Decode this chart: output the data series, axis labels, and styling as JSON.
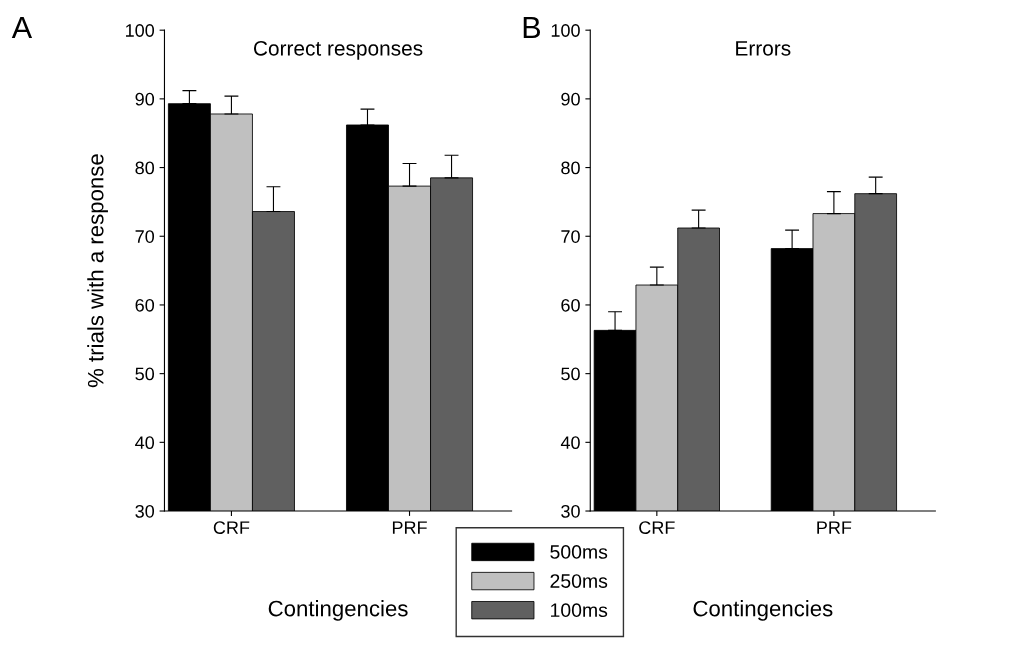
{
  "chart_data": [
    {
      "type": "bar",
      "title": "Correct responses",
      "xlabel": "Contingencies",
      "ylabel": "% trials with a response",
      "annotations": [
        "A"
      ],
      "categories": [
        "CRF",
        "PRF"
      ],
      "ylim": [
        30,
        100
      ],
      "yticks": [
        30,
        40,
        50,
        60,
        70,
        80,
        90,
        100
      ],
      "grid": false,
      "legend": "bottom",
      "series": [
        {
          "name": "500ms",
          "color": "#000000",
          "values": [
            89.3,
            86.2
          ],
          "errors": [
            [
              89.3,
              91.2
            ],
            [
              86.2,
              88.5
            ]
          ]
        },
        {
          "name": "250ms",
          "color": "#c0c0c0",
          "values": [
            87.8,
            77.3
          ],
          "errors": [
            [
              87.8,
              90.4
            ],
            [
              77.3,
              80.6
            ]
          ]
        },
        {
          "name": "100ms",
          "color": "#606060",
          "values": [
            73.6,
            78.5
          ],
          "errors": [
            [
              73.6,
              77.2
            ],
            [
              78.5,
              81.8
            ]
          ]
        }
      ]
    },
    {
      "type": "bar",
      "title": "Errors",
      "xlabel": "Contingencies",
      "annotations": [
        "B"
      ],
      "categories": [
        "CRF",
        "PRF"
      ],
      "ylim": [
        30,
        100
      ],
      "yticks": [
        30,
        40,
        50,
        60,
        70,
        80,
        90,
        100
      ],
      "grid": false,
      "series": [
        {
          "color": "#000000",
          "values": [
            56.3,
            68.2
          ],
          "errors": [
            [
              56.3,
              59.0
            ],
            [
              68.2,
              70.9
            ]
          ]
        },
        {
          "color": "#c0c0c0",
          "values": [
            62.9,
            73.3
          ],
          "errors": [
            [
              62.9,
              65.5
            ],
            [
              73.3,
              76.5
            ]
          ]
        },
        {
          "color": "#606060",
          "values": [
            71.2,
            76.2
          ],
          "errors": [
            [
              71.2,
              73.8
            ],
            [
              76.2,
              78.6
            ]
          ]
        }
      ]
    }
  ]
}
